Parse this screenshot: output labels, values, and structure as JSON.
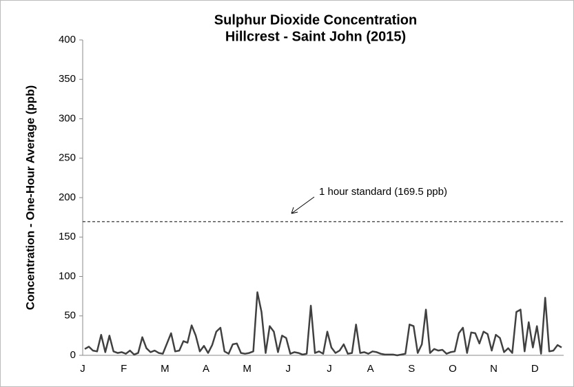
{
  "chart_data": {
    "type": "line",
    "title": "Sulphur Dioxide Concentration",
    "subtitle": "Hillcrest - Saint John (2015)",
    "y_label": "Concentration - One-Hour Average (ppb)",
    "categories": [
      "J",
      null,
      null,
      null,
      null,
      null,
      null,
      null,
      null,
      null,
      "F",
      null,
      null,
      null,
      null,
      null,
      null,
      null,
      null,
      null,
      "M",
      null,
      null,
      null,
      null,
      null,
      null,
      null,
      null,
      null,
      "A",
      null,
      null,
      null,
      null,
      null,
      null,
      null,
      null,
      null,
      "M",
      null,
      null,
      null,
      null,
      null,
      null,
      null,
      null,
      null,
      "J",
      null,
      null,
      null,
      null,
      null,
      null,
      null,
      null,
      null,
      "J",
      null,
      null,
      null,
      null,
      null,
      null,
      null,
      null,
      null,
      "A",
      null,
      null,
      null,
      null,
      null,
      null,
      null,
      null,
      null,
      "S",
      null,
      null,
      null,
      null,
      null,
      null,
      null,
      null,
      null,
      "O",
      null,
      null,
      null,
      null,
      null,
      null,
      null,
      null,
      null,
      "N",
      null,
      null,
      null,
      null,
      null,
      null,
      null,
      null,
      null,
      "D",
      null,
      null,
      null,
      null,
      null,
      null
    ],
    "values": [
      8,
      11,
      6,
      5,
      26,
      4,
      25,
      5,
      3,
      4,
      2,
      6,
      1,
      3,
      23,
      9,
      4,
      6,
      3,
      2,
      15,
      28,
      5,
      6,
      18,
      16,
      38,
      25,
      5,
      12,
      3,
      13,
      30,
      35,
      5,
      2,
      14,
      15,
      3,
      2,
      3,
      5,
      80,
      55,
      3,
      37,
      30,
      4,
      25,
      22,
      2,
      4,
      3,
      1,
      2,
      63,
      3,
      5,
      2,
      30,
      10,
      3,
      6,
      14,
      2,
      3,
      39,
      3,
      4,
      2,
      5,
      4,
      2,
      1,
      1,
      1,
      0,
      1,
      2,
      39,
      37,
      3,
      14,
      58,
      3,
      8,
      6,
      7,
      2,
      4,
      5,
      28,
      35,
      3,
      29,
      28,
      15,
      30,
      27,
      6,
      26,
      22,
      4,
      9,
      3,
      55,
      58,
      5,
      42,
      10,
      37,
      2,
      73,
      5,
      6,
      13,
      10
    ],
    "color": "#404040",
    "ylim": [
      0,
      400
    ],
    "yticks": [
      0,
      50,
      100,
      150,
      200,
      250,
      300,
      350,
      400
    ],
    "reference_line": {
      "value": 169.5,
      "label": "1 hour standard (169.5 ppb)"
    },
    "grid": false
  }
}
